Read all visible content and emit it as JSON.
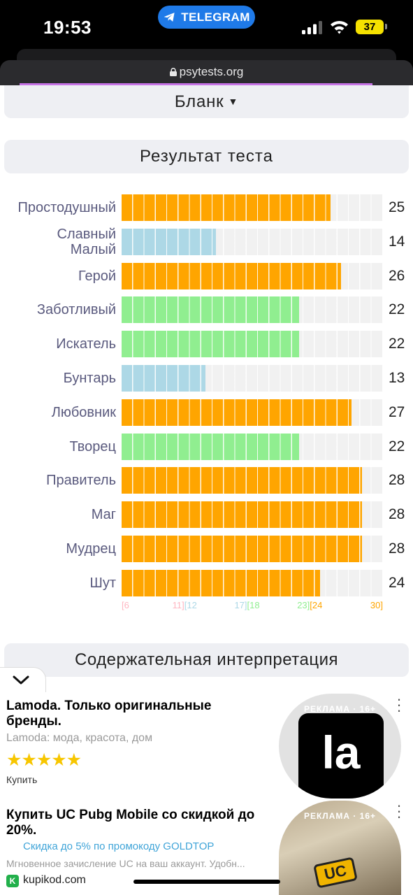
{
  "status": {
    "time": "19:53",
    "telegram_label": "TELEGRAM",
    "battery": "37",
    "url": "psytests.org"
  },
  "sections": {
    "blank": "Бланк",
    "result": "Результат теста",
    "interpretation": "Содержательная интерпретация"
  },
  "colors": {
    "orange": "#ffa500",
    "blue": "#add8e6",
    "green": "#90ee90",
    "pink": "#ffb6c1",
    "track": "#f1f1f1"
  },
  "chart_data": {
    "type": "bar",
    "orientation": "horizontal",
    "xlim": [
      6,
      30
    ],
    "categories": [
      "Простодушный",
      "Славный Малый",
      "Герой",
      "Заботливый",
      "Искатель",
      "Бунтарь",
      "Любовник",
      "Творец",
      "Правитель",
      "Маг",
      "Мудрец",
      "Шут"
    ],
    "values": [
      25,
      14,
      26,
      22,
      22,
      13,
      27,
      22,
      28,
      28,
      28,
      24
    ],
    "value_labels": [
      "25",
      "14",
      "26",
      "22",
      "22",
      "13",
      "27",
      "22",
      "28",
      "28",
      "28",
      "24"
    ],
    "ranges": [
      {
        "from": 6,
        "to": 11,
        "start_label": "[6",
        "end_label": "11]",
        "color": "pink"
      },
      {
        "from": 12,
        "to": 17,
        "start_label": "[12",
        "end_label": "17]",
        "color": "blue"
      },
      {
        "from": 18,
        "to": 23,
        "start_label": "[18",
        "end_label": "23]",
        "color": "green"
      },
      {
        "from": 24,
        "to": 30,
        "start_label": "[24",
        "end_label": "30]",
        "color": "orange"
      }
    ]
  },
  "ads": [
    {
      "title": "Lamoda. Только оригинальные бренды.",
      "subtitle": "Lamoda: мода, красота, дом",
      "stars": "★★★★★",
      "action": "Купить",
      "badge": "РЕКЛАМА · 16+",
      "thumb_text": "la"
    },
    {
      "title": "Купить UC Pubg Mobile со скидкой до 20%.",
      "link": "Скидка до 5% по промокоду GOLDTOP",
      "description": "Мгновенное зачисление UC на ваш аккаунт. Удобн...",
      "domain": "kupikod.com",
      "favicon": "K",
      "badge": "РЕКЛАМА · 16+",
      "thumb_text": "UC"
    }
  ]
}
